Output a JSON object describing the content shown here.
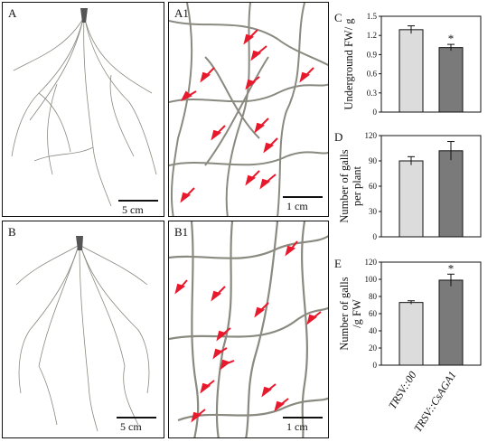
{
  "photos": {
    "A": {
      "label": "A",
      "scale": "5 cm"
    },
    "A1": {
      "label": "A1",
      "scale": "1 cm"
    },
    "B": {
      "label": "B",
      "scale": "5 cm"
    },
    "B1": {
      "label": "B1",
      "scale": "1 cm"
    }
  },
  "colors": {
    "light_bar": "#dcdcdc",
    "dark_bar": "#7a7a7a",
    "arrow": "#e8192c",
    "root": "#8a8a80"
  },
  "chart_data": [
    {
      "type": "bar",
      "panel": "C",
      "categories": [
        "TRSV::00",
        "TRSV::CsAGA1"
      ],
      "values": [
        1.29,
        1.01
      ],
      "errors": [
        0.06,
        0.05
      ],
      "significance": [
        "",
        "*"
      ],
      "ylabel": "Underground FW/ g",
      "ylim": [
        0,
        1.5
      ],
      "yticks": [
        "0",
        "0.3",
        "0.6",
        "0.9",
        "1.2",
        "1.5"
      ]
    },
    {
      "type": "bar",
      "panel": "D",
      "categories": [
        "TRSV::00",
        "TRSV::CsAGA1"
      ],
      "values": [
        90,
        102
      ],
      "errors": [
        5,
        11
      ],
      "significance": [
        "",
        ""
      ],
      "ylabel": "Number of galls per plant",
      "ylim": [
        0,
        120
      ],
      "yticks": [
        "0",
        "30",
        "60",
        "90",
        "120"
      ]
    },
    {
      "type": "bar",
      "panel": "E",
      "categories": [
        "TRSV::00",
        "TRSV::CsAGA1"
      ],
      "values": [
        73,
        99
      ],
      "errors": [
        2,
        7
      ],
      "significance": [
        "",
        "*"
      ],
      "ylabel": "Number of galls /g FW",
      "ylim": [
        0,
        120
      ],
      "yticks": [
        "0",
        "20",
        "40",
        "60",
        "80",
        "100",
        "120"
      ]
    }
  ]
}
